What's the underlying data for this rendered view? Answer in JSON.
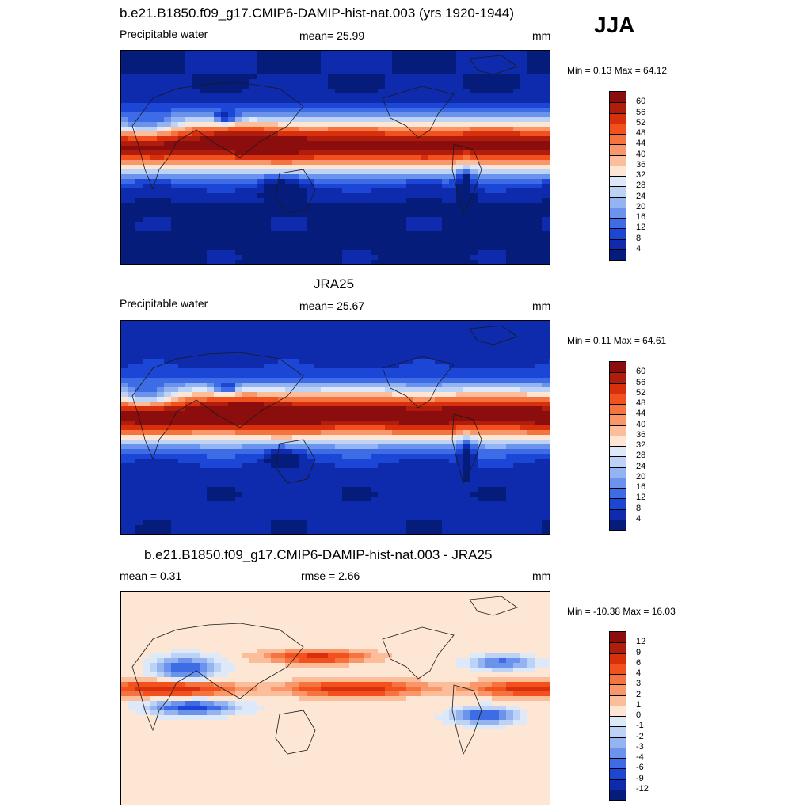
{
  "season": "JJA",
  "panels": [
    {
      "id": "model",
      "title": "b.e21.B1850.f09_g17.CMIP6-DAMIP-hist-nat.003 (yrs 1920-1944)",
      "left_label": "Precipitable water",
      "center_label": "mean=  25.99",
      "units": "mm",
      "minmax": "Min =   0.13 Max =  64.12",
      "colorbar": {
        "levels": [
          "60",
          "56",
          "52",
          "48",
          "44",
          "40",
          "36",
          "32",
          "28",
          "24",
          "20",
          "16",
          "12",
          "8",
          "4"
        ],
        "colors": [
          "#8b0d0d",
          "#b01d0c",
          "#d8300c",
          "#f2501d",
          "#f5733f",
          "#f9966a",
          "#fbbd9a",
          "#fde6d3",
          "#dde9f9",
          "#bcd3f6",
          "#93b4f1",
          "#6b93ec",
          "#3d6ce6",
          "#1c47d6",
          "#0e2aad",
          "#061c7a"
        ]
      }
    },
    {
      "id": "obs",
      "title": "JRA25",
      "left_label": "Precipitable water",
      "center_label": "mean=  25.67",
      "units": "mm",
      "minmax": "Min =   0.11 Max =  64.61",
      "colorbar": {
        "levels": [
          "60",
          "56",
          "52",
          "48",
          "44",
          "40",
          "36",
          "32",
          "28",
          "24",
          "20",
          "16",
          "12",
          "8",
          "4"
        ],
        "colors": [
          "#8b0d0d",
          "#b01d0c",
          "#d8300c",
          "#f2501d",
          "#f5733f",
          "#f9966a",
          "#fbbd9a",
          "#fde6d3",
          "#dde9f9",
          "#bcd3f6",
          "#93b4f1",
          "#6b93ec",
          "#3d6ce6",
          "#1c47d6",
          "#0e2aad",
          "#061c7a"
        ]
      }
    },
    {
      "id": "diff",
      "title": "b.e21.B1850.f09_g17.CMIP6-DAMIP-hist-nat.003 - JRA25",
      "left_label": "mean =   0.31",
      "center_label": "rmse =   2.66",
      "units": "mm",
      "minmax": "Min = -10.38 Max =  16.03",
      "colorbar": {
        "levels": [
          "12",
          "9",
          "6",
          "4",
          "3",
          "2",
          "1",
          "0",
          "-1",
          "-2",
          "-3",
          "-4",
          "-6",
          "-9",
          "-12"
        ],
        "colors": [
          "#8b0d0d",
          "#b01d0c",
          "#d8300c",
          "#f2501d",
          "#f5733f",
          "#f9966a",
          "#fbbd9a",
          "#fde6d3",
          "#dde9f9",
          "#bcd3f6",
          "#93b4f1",
          "#6b93ec",
          "#3d6ce6",
          "#1c47d6",
          "#0e2aad",
          "#061c7a"
        ]
      }
    }
  ]
}
